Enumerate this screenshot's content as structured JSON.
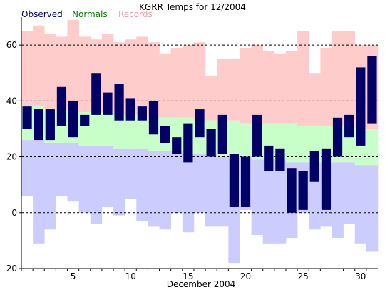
{
  "chart_data": {
    "type": "bar",
    "title": "KGRR Temps for 12/2004",
    "xlabel": "December 2004",
    "ylabel": "",
    "xlim": [
      1,
      31
    ],
    "ylim": [
      -20,
      70
    ],
    "legend": [
      {
        "label": "Observed",
        "color": "#00006e"
      },
      {
        "label": "Normals",
        "color": "#008000"
      },
      {
        "label": "Records",
        "color": "#e6a0a8"
      }
    ],
    "legend_position": "top-left",
    "x_ticks": [
      5,
      10,
      15,
      20,
      25,
      30
    ],
    "y_ticks": [
      -20,
      0,
      20,
      40,
      60
    ],
    "gridlines_y": [
      0,
      20,
      40,
      60
    ],
    "days": [
      1,
      2,
      3,
      4,
      5,
      6,
      7,
      8,
      9,
      10,
      11,
      12,
      13,
      14,
      15,
      16,
      17,
      18,
      19,
      20,
      21,
      22,
      23,
      24,
      25,
      26,
      27,
      28,
      29,
      30,
      31
    ],
    "observed_high": [
      38,
      37,
      37,
      45,
      40,
      35,
      50,
      43,
      46,
      41,
      38,
      40,
      31,
      27,
      32,
      37,
      30,
      35,
      21,
      20,
      35,
      24,
      23,
      16,
      15,
      22,
      23,
      34,
      35,
      52,
      56
    ],
    "observed_low": [
      30,
      26,
      26,
      31,
      27,
      31,
      35,
      35,
      33,
      33,
      33,
      28,
      25,
      21,
      18,
      27,
      20,
      21,
      2,
      2,
      20,
      15,
      15,
      0,
      1,
      11,
      1,
      20,
      27,
      24,
      32
    ],
    "normal_high": [
      38,
      38,
      37,
      37,
      37,
      36,
      36,
      36,
      35,
      35,
      35,
      34,
      34,
      34,
      34,
      33,
      33,
      33,
      33,
      32,
      32,
      32,
      32,
      32,
      31,
      31,
      31,
      31,
      31,
      30,
      30
    ],
    "normal_low": [
      26,
      26,
      25,
      25,
      25,
      24,
      24,
      24,
      23,
      23,
      23,
      22,
      22,
      22,
      21,
      21,
      21,
      20,
      20,
      20,
      19,
      19,
      19,
      18,
      18,
      18,
      18,
      18,
      18,
      17,
      17
    ],
    "record_high": [
      65,
      67,
      64,
      63,
      69,
      63,
      62,
      64,
      61,
      62,
      63,
      61,
      57,
      59,
      60,
      61,
      49,
      55,
      55,
      59,
      60,
      58,
      57,
      58,
      65,
      50,
      59,
      65,
      65,
      60,
      60
    ],
    "record_low": [
      6,
      -11,
      -6,
      6,
      4,
      0,
      -4,
      2,
      -1,
      5,
      -3,
      -5,
      -6,
      0,
      -7,
      0,
      -5,
      -5,
      -18,
      1,
      -8,
      -11,
      -11,
      -9,
      0,
      -6,
      -5,
      -9,
      -4,
      -11,
      -14
    ],
    "colors": {
      "observed": "#000066",
      "normals": "#c8ffc8",
      "records": "#ffcccc",
      "record_low_band": "#ccccff",
      "grid": "#000000",
      "axis": "#000000"
    }
  }
}
